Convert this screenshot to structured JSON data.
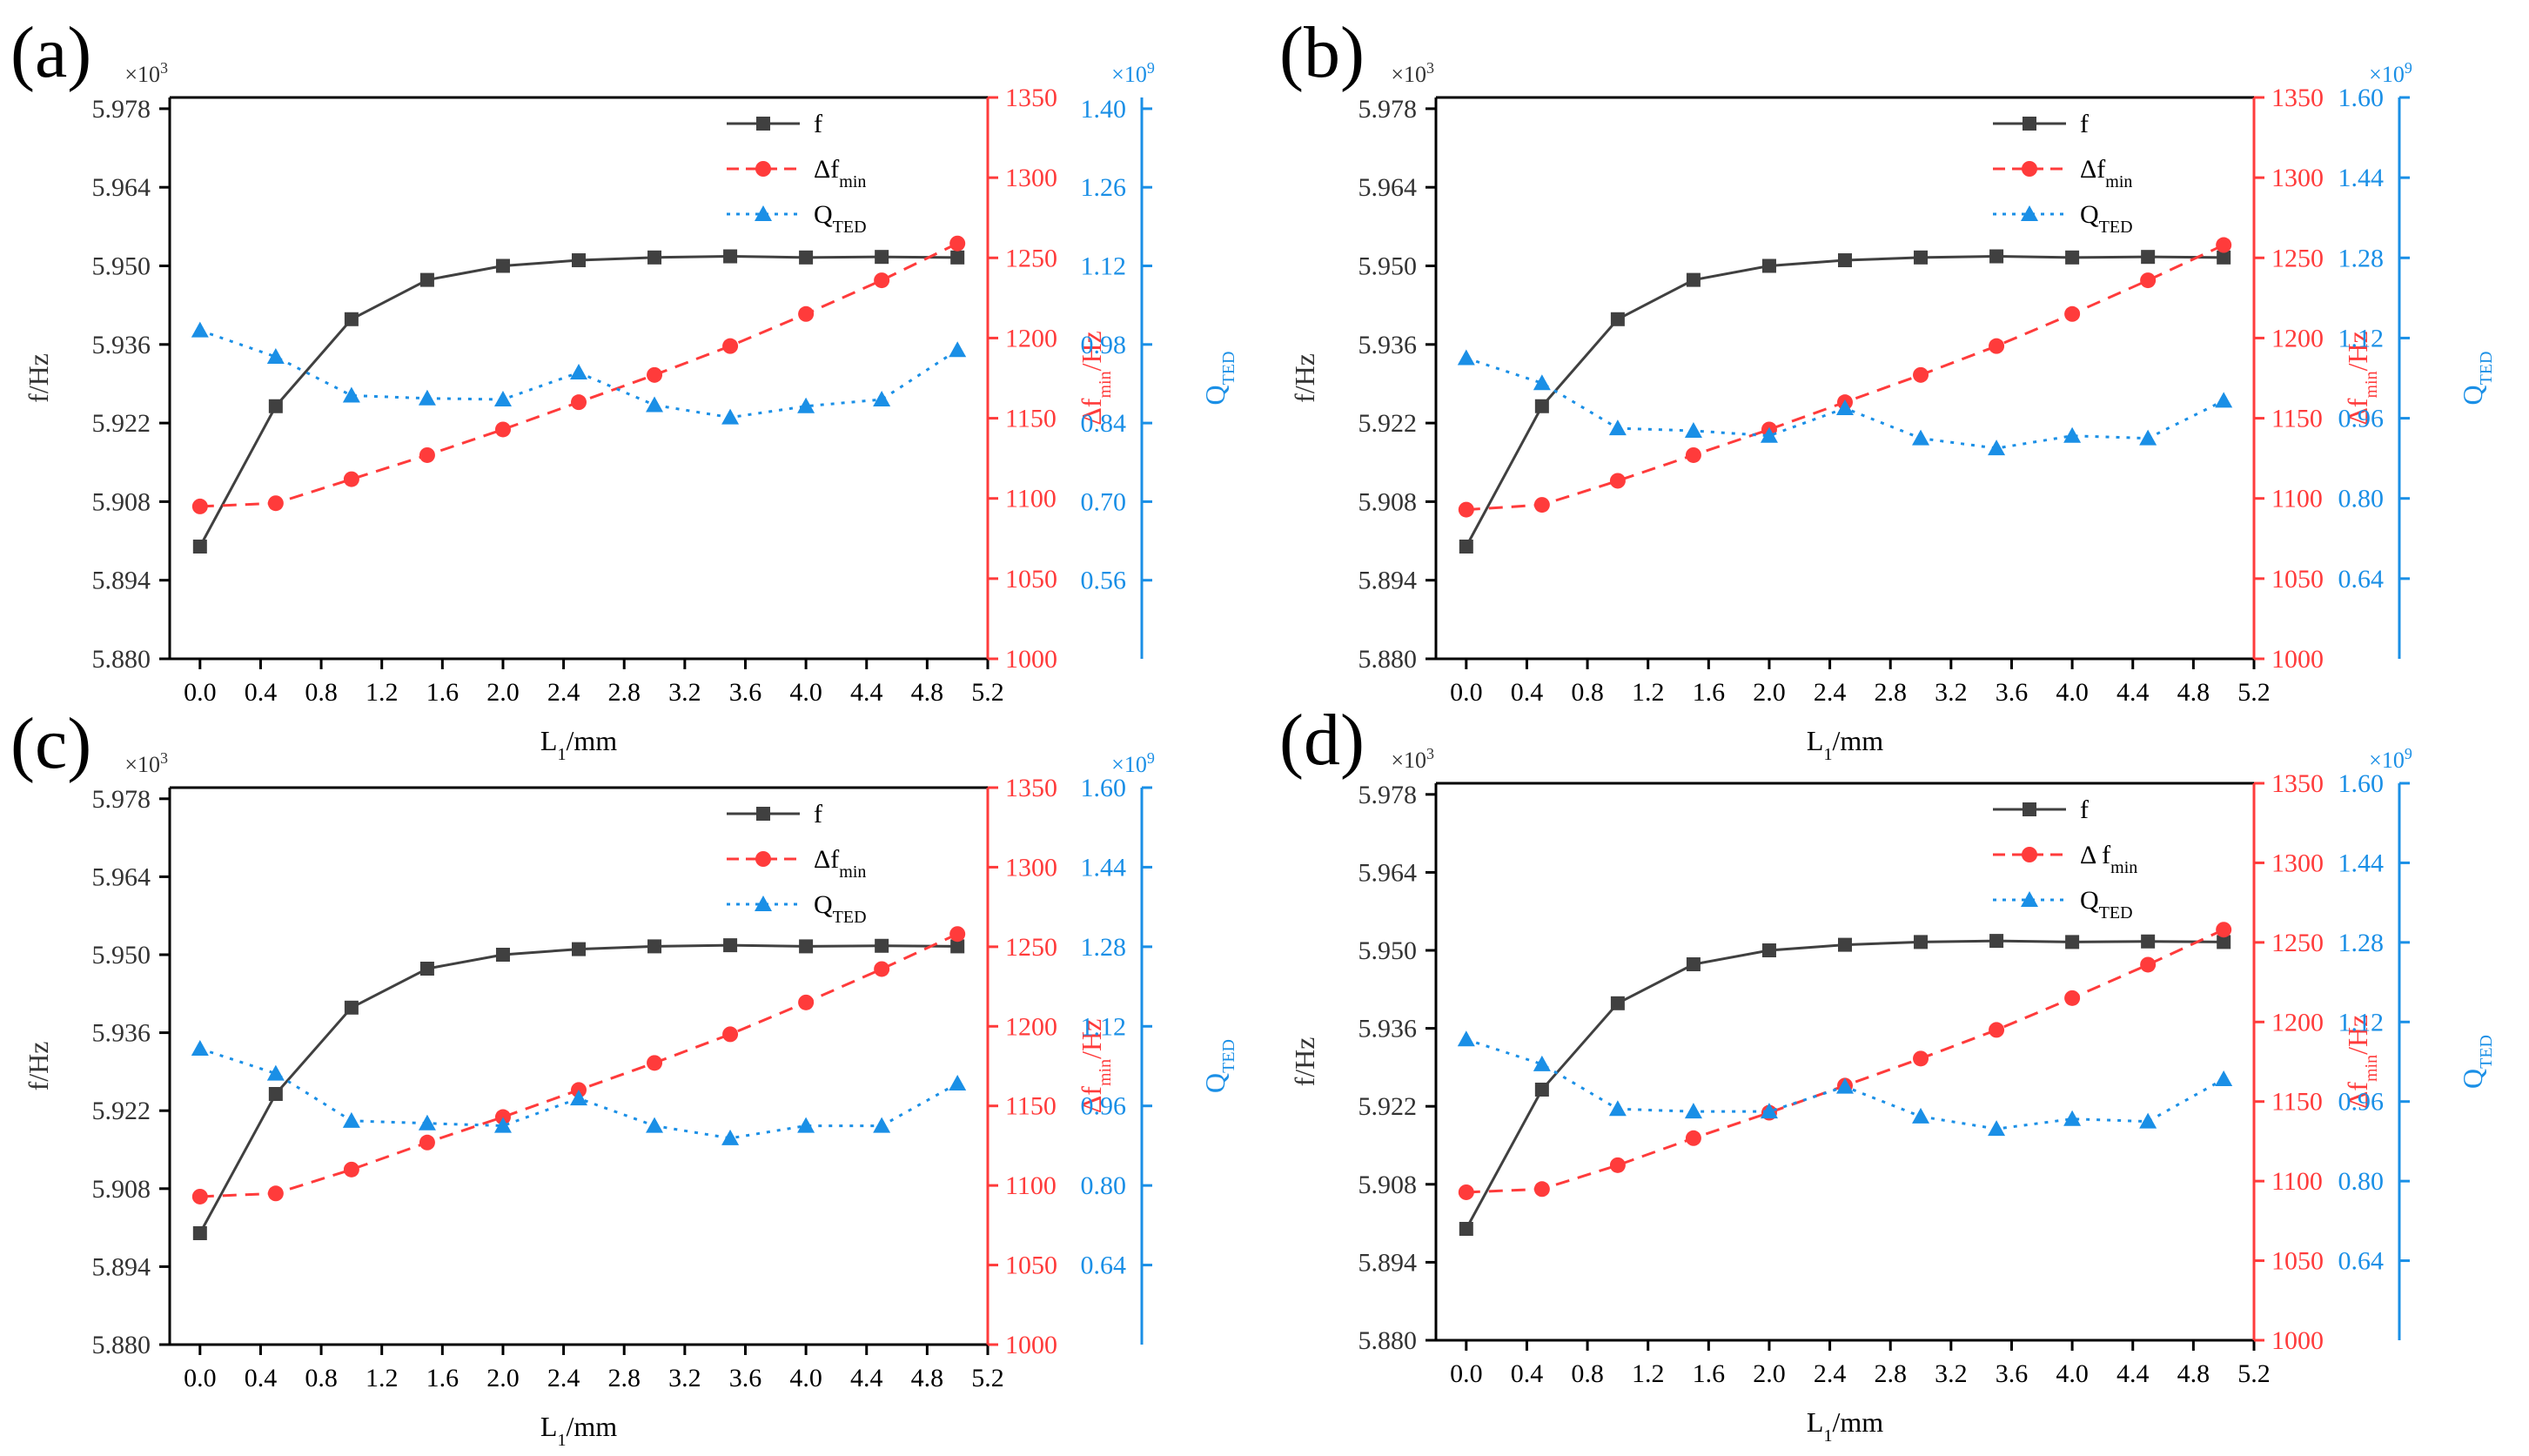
{
  "colors": {
    "f": "#404040",
    "df": "#ff3b3b",
    "q": "#1a8fe6",
    "axis_black": "#000000"
  },
  "chart_data": [
    {
      "type": "line",
      "panel_label": "(a)",
      "xlabel": "L",
      "xlabel_sub": "1",
      "xlabel_unit": "/mm",
      "x_ticks": [
        "0.0",
        "0.4",
        "0.8",
        "1.2",
        "1.6",
        "2.0",
        "2.4",
        "2.8",
        "3.2",
        "3.6",
        "4.0",
        "4.4",
        "4.8",
        "5.2"
      ],
      "xlim": [
        -0.2,
        5.2
      ],
      "x": [
        0,
        0.5,
        1.0,
        1.5,
        2.0,
        2.5,
        3.0,
        3.5,
        4.0,
        4.5,
        5.0
      ],
      "left_axis": {
        "label": "f/Hz",
        "multiplier": "×10",
        "multiplier_exp": "3",
        "ylim": [
          5.88,
          5.98
        ],
        "ticks": [
          "5.880",
          "5.894",
          "5.908",
          "5.922",
          "5.936",
          "5.950",
          "5.964",
          "5.978"
        ]
      },
      "right_axis_1": {
        "label_delta": "Δf",
        "label_sub": "min",
        "label_unit": "/Hz",
        "ylim": [
          1000,
          1350
        ],
        "ticks": [
          "1000",
          "1050",
          "1100",
          "1150",
          "1200",
          "1250",
          "1300",
          "1350"
        ]
      },
      "right_axis_2": {
        "label": "Q",
        "label_sub": "TED",
        "multiplier": "×10",
        "multiplier_exp": "9",
        "ylim": [
          0.42,
          1.42
        ],
        "ticks": [
          "0.56",
          "0.70",
          "0.84",
          "0.98",
          "1.12",
          "1.26",
          "1.40"
        ]
      },
      "legend": {
        "position": "top-right",
        "f": "f",
        "df": "Δf",
        "df_sub": "min",
        "q": "Q",
        "q_sub": "TED"
      },
      "series": [
        {
          "name": "f",
          "axis": "left",
          "values": [
            5.9,
            5.925,
            5.9405,
            5.9475,
            5.95,
            5.951,
            5.9515,
            5.9517,
            5.9515,
            5.9516,
            5.9515
          ]
        },
        {
          "name": "Δf_min",
          "axis": "right1",
          "values": [
            1095,
            1097,
            1112,
            1127,
            1143,
            1160,
            1177,
            1195,
            1215,
            1236,
            1259
          ]
        },
        {
          "name": "Q_TED",
          "axis": "right2",
          "values": [
            1.005,
            0.958,
            0.889,
            0.884,
            0.882,
            0.93,
            0.872,
            0.85,
            0.87,
            0.882,
            0.97
          ]
        }
      ]
    },
    {
      "type": "line",
      "panel_label": "(b)",
      "xlabel": "L",
      "xlabel_sub": "1",
      "xlabel_unit": "/mm",
      "x_ticks": [
        "0.0",
        "0.4",
        "0.8",
        "1.2",
        "1.6",
        "2.0",
        "2.4",
        "2.8",
        "3.2",
        "3.6",
        "4.0",
        "4.4",
        "4.8",
        "5.2"
      ],
      "xlim": [
        -0.2,
        5.2
      ],
      "x": [
        0,
        0.5,
        1.0,
        1.5,
        2.0,
        2.5,
        3.0,
        3.5,
        4.0,
        4.5,
        5.0
      ],
      "left_axis": {
        "label": "f/Hz",
        "multiplier": "×10",
        "multiplier_exp": "3",
        "ylim": [
          5.88,
          5.98
        ],
        "ticks": [
          "5.880",
          "5.894",
          "5.908",
          "5.922",
          "5.936",
          "5.950",
          "5.964",
          "5.978"
        ]
      },
      "right_axis_1": {
        "label_delta": "Δf",
        "label_sub": "min",
        "label_unit": "/Hz",
        "ylim": [
          1000,
          1350
        ],
        "ticks": [
          "1000",
          "1050",
          "1100",
          "1150",
          "1200",
          "1250",
          "1300",
          "1350"
        ]
      },
      "right_axis_2": {
        "label": "Q",
        "label_sub": "TED",
        "multiplier": "×10",
        "multiplier_exp": "9",
        "ylim": [
          0.48,
          1.6
        ],
        "ticks": [
          "0.64",
          "0.80",
          "0.96",
          "1.12",
          "1.28",
          "1.44",
          "1.60"
        ]
      },
      "legend": {
        "position": "top-right",
        "f": "f",
        "df": "Δf",
        "df_sub": "min",
        "q": "Q",
        "q_sub": "TED"
      },
      "series": [
        {
          "name": "f",
          "axis": "left",
          "values": [
            5.9,
            5.925,
            5.9405,
            5.9475,
            5.95,
            5.951,
            5.9515,
            5.9517,
            5.9515,
            5.9516,
            5.9515
          ]
        },
        {
          "name": "Δf_min",
          "axis": "right1",
          "values": [
            1093,
            1096,
            1111,
            1127,
            1143,
            1160,
            1177,
            1195,
            1215,
            1236,
            1258
          ]
        },
        {
          "name": "Q_TED",
          "axis": "right2",
          "values": [
            1.08,
            1.03,
            0.94,
            0.935,
            0.925,
            0.98,
            0.92,
            0.9,
            0.925,
            0.92,
            0.995
          ]
        }
      ]
    },
    {
      "type": "line",
      "panel_label": "(c)",
      "xlabel": "L",
      "xlabel_sub": "1",
      "xlabel_unit": "/mm",
      "x_ticks": [
        "0.0",
        "0.4",
        "0.8",
        "1.2",
        "1.6",
        "2.0",
        "2.4",
        "2.8",
        "3.2",
        "3.6",
        "4.0",
        "4.4",
        "4.8",
        "5.2"
      ],
      "xlim": [
        -0.2,
        5.2
      ],
      "x": [
        0,
        0.5,
        1.0,
        1.5,
        2.0,
        2.5,
        3.0,
        3.5,
        4.0,
        4.5,
        5.0
      ],
      "left_axis": {
        "label": "f/Hz",
        "multiplier": "×10",
        "multiplier_exp": "3",
        "ylim": [
          5.88,
          5.98
        ],
        "ticks": [
          "5.880",
          "5.894",
          "5.908",
          "5.922",
          "5.936",
          "5.950",
          "5.964",
          "5.978"
        ]
      },
      "right_axis_1": {
        "label_delta": "Δf",
        "label_sub": "min",
        "label_unit": "/Hz",
        "ylim": [
          1000,
          1350
        ],
        "ticks": [
          "1000",
          "1050",
          "1100",
          "1150",
          "1200",
          "1250",
          "1300",
          "1350"
        ]
      },
      "right_axis_2": {
        "label": "Q",
        "label_sub": "TED",
        "multiplier": "×10",
        "multiplier_exp": "9",
        "ylim": [
          0.48,
          1.6
        ],
        "ticks": [
          "0.64",
          "0.80",
          "0.96",
          "1.12",
          "1.28",
          "1.44",
          "1.60"
        ]
      },
      "legend": {
        "position": "top-right",
        "f": "f",
        "df": "Δf",
        "df_sub": "min",
        "q": "Q",
        "q_sub": "TED"
      },
      "series": [
        {
          "name": "f",
          "axis": "left",
          "values": [
            5.9,
            5.925,
            5.9405,
            5.9475,
            5.95,
            5.951,
            5.9515,
            5.9517,
            5.9515,
            5.9516,
            5.9515
          ]
        },
        {
          "name": "Δf_min",
          "axis": "right1",
          "values": [
            1093,
            1095,
            1110,
            1127,
            1143,
            1160,
            1177,
            1195,
            1215,
            1236,
            1258
          ]
        },
        {
          "name": "Q_TED",
          "axis": "right2",
          "values": [
            1.075,
            1.025,
            0.93,
            0.925,
            0.92,
            0.975,
            0.92,
            0.895,
            0.92,
            0.92,
            1.005
          ]
        }
      ]
    },
    {
      "type": "line",
      "panel_label": "(d)",
      "xlabel": "L",
      "xlabel_sub": "1",
      "xlabel_unit": "/mm",
      "x_ticks": [
        "0.0",
        "0.4",
        "0.8",
        "1.2",
        "1.6",
        "2.0",
        "2.4",
        "2.8",
        "3.2",
        "3.6",
        "4.0",
        "4.4",
        "4.8",
        "5.2"
      ],
      "xlim": [
        -0.2,
        5.2
      ],
      "x": [
        0,
        0.5,
        1.0,
        1.5,
        2.0,
        2.5,
        3.0,
        3.5,
        4.0,
        4.5,
        5.0
      ],
      "left_axis": {
        "label": "f/Hz",
        "multiplier": "×10",
        "multiplier_exp": "3",
        "ylim": [
          5.88,
          5.98
        ],
        "ticks": [
          "5.880",
          "5.894",
          "5.908",
          "5.922",
          "5.936",
          "5.950",
          "5.964",
          "5.978"
        ]
      },
      "right_axis_1": {
        "label_delta": "Δf",
        "label_sub": "min",
        "label_unit": "/Hz",
        "ylim": [
          1000,
          1350
        ],
        "ticks": [
          "1000",
          "1050",
          "1100",
          "1150",
          "1200",
          "1250",
          "1300",
          "1350"
        ]
      },
      "right_axis_2": {
        "label": "Q",
        "label_sub": "TED",
        "multiplier": "×10",
        "multiplier_exp": "9",
        "ylim": [
          0.48,
          1.6
        ],
        "ticks": [
          "0.64",
          "0.80",
          "0.96",
          "1.12",
          "1.28",
          "1.44",
          "1.60"
        ]
      },
      "legend": {
        "position": "top-right",
        "f": "f",
        "df": "Δ f",
        "df_sub": "min",
        "q": "Q",
        "q_sub": "TED"
      },
      "series": [
        {
          "name": "f",
          "axis": "left",
          "values": [
            5.9,
            5.925,
            5.9405,
            5.9475,
            5.95,
            5.951,
            5.9515,
            5.9517,
            5.9515,
            5.9516,
            5.9515
          ]
        },
        {
          "name": "Δf_min",
          "axis": "right1",
          "values": [
            1093,
            1095,
            1110,
            1127,
            1143,
            1160,
            1177,
            1195,
            1215,
            1236,
            1258
          ]
        },
        {
          "name": "Q_TED",
          "axis": "right2",
          "values": [
            1.085,
            1.035,
            0.945,
            0.94,
            0.94,
            0.99,
            0.93,
            0.905,
            0.925,
            0.92,
            1.005
          ]
        }
      ]
    }
  ]
}
